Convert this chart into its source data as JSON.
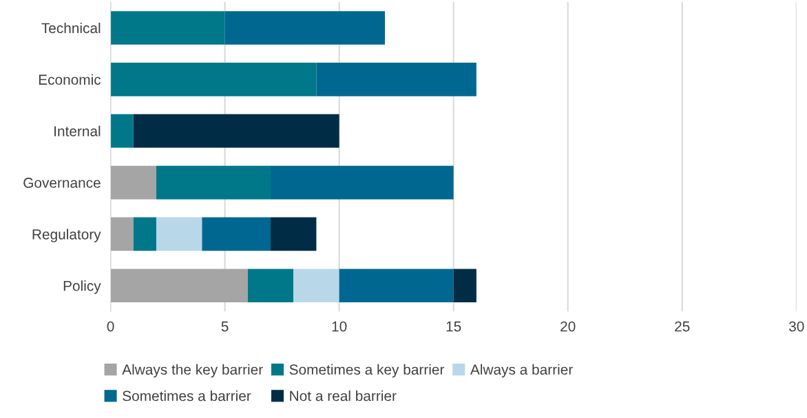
{
  "chart_data": {
    "type": "bar",
    "orientation": "horizontal",
    "stacked": true,
    "categories": [
      "Technical",
      "Economic",
      "Internal",
      "Governance",
      "Regulatory",
      "Policy"
    ],
    "series": [
      {
        "name": "Always the key barrier",
        "color": "#a5a5a5",
        "values": [
          0,
          0,
          0,
          2,
          1,
          6
        ]
      },
      {
        "name": "Sometimes a key barrier",
        "color": "#00788a",
        "values": [
          5,
          9,
          1,
          5,
          1,
          2
        ]
      },
      {
        "name": "Always a barrier",
        "color": "#b8d8ea",
        "values": [
          0,
          0,
          0,
          0,
          2,
          2
        ]
      },
      {
        "name": "Sometimes a barrier",
        "color": "#006890",
        "values": [
          7,
          7,
          0,
          8,
          3,
          5
        ]
      },
      {
        "name": "Not a real barrier",
        "color": "#002d45",
        "values": [
          0,
          0,
          9,
          0,
          2,
          1
        ]
      }
    ],
    "xlim": [
      0,
      30
    ],
    "xticks": [
      0,
      5,
      10,
      15,
      20,
      25,
      30
    ],
    "grid": "x",
    "legend": "bottom"
  }
}
